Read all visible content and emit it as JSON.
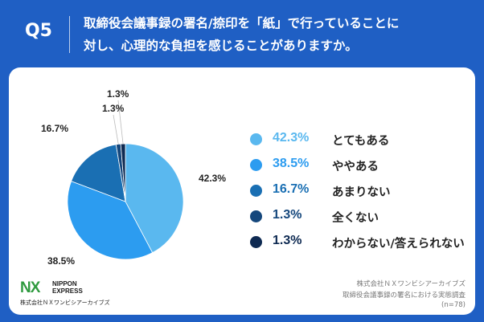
{
  "header": {
    "question_number": "Q5",
    "question_line1": "取締役会議事録の署名/捺印を「紙」で行っていることに",
    "question_line2": "対し、心理的な負担を感じることがありますか。"
  },
  "colors": {
    "background": "#1f5fc4",
    "series": [
      "#5ab8ef",
      "#2c9cf0",
      "#1a6fb3",
      "#15477c",
      "#0e2a52"
    ]
  },
  "chart_data": {
    "type": "pie",
    "title": "",
    "categories": [
      "とてもある",
      "ややある",
      "あまりない",
      "全くない",
      "わからない/答えられない"
    ],
    "values": [
      42.3,
      38.5,
      16.7,
      1.3,
      1.3
    ],
    "value_labels": [
      "42.3%",
      "38.5%",
      "16.7%",
      "1.3%",
      "1.3%"
    ],
    "legend_position": "right",
    "start": "top",
    "direction": "clockwise"
  },
  "logo": {
    "mark": "NX",
    "name_line1": "NIPPON",
    "name_line2": "EXPRESS",
    "sub": "株式会社ＮＸワンビシアーカイブズ"
  },
  "credit": {
    "line1": "株式会社ＮＸワンビシアーカイブズ",
    "line2": "取締役会議事録の署名における実態調査",
    "line3": "(n=78)"
  }
}
